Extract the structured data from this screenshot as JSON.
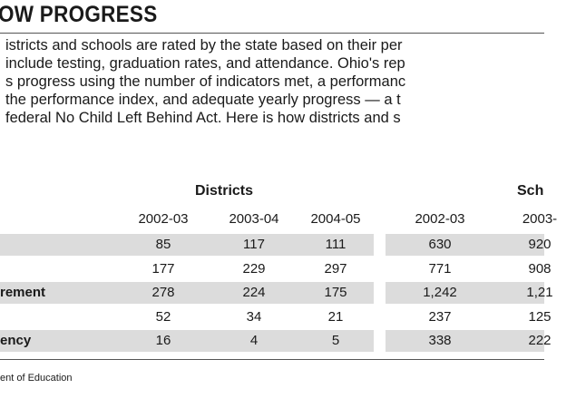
{
  "header": {
    "title": "OW PROGRESS"
  },
  "intro": [
    "istricts and schools are rated by the state based on their per",
    " include testing, graduation rates, and attendance. Ohio's rep",
    "s progress using the number of indicators met, a performanc",
    "the performance index, and adequate yearly progress — a t",
    " federal No Child Left Behind Act. Here is how districts and s"
  ],
  "table": {
    "groups": [
      "Districts",
      "Sch"
    ],
    "columns": [
      "2002-03",
      "2003-04",
      "2004-05",
      "2002-03",
      "2003-"
    ],
    "rows": [
      {
        "label": null,
        "cells": [
          "85",
          "117",
          "111",
          "630",
          "920"
        ]
      },
      {
        "label": null,
        "cells": [
          "177",
          "229",
          "297",
          "771",
          "908"
        ]
      },
      {
        "label": "rement",
        "cells": [
          "278",
          "224",
          "175",
          "1,242",
          "1,21"
        ]
      },
      {
        "label": null,
        "cells": [
          "52",
          "34",
          "21",
          "237",
          "125"
        ]
      },
      {
        "label": "ency",
        "cells": [
          "16",
          "4",
          "5",
          "338",
          "222"
        ]
      }
    ]
  },
  "source": "ent of Education"
}
